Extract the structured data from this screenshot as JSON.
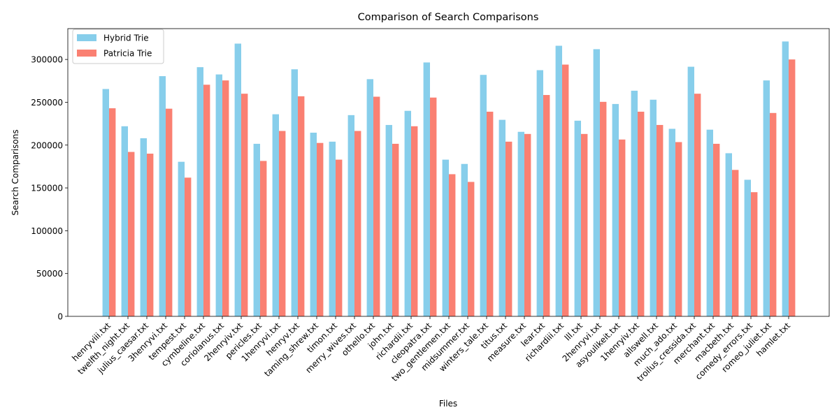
{
  "chart_data": {
    "type": "bar",
    "title": "Comparison of Search Comparisons",
    "xlabel": "Files",
    "ylabel": "Search Comparisons",
    "ylim": [
      0,
      336000
    ],
    "yticks": [
      0,
      50000,
      100000,
      150000,
      200000,
      250000,
      300000
    ],
    "legend_position": "top-left",
    "grid": false,
    "categories": [
      "henryviii.txt",
      "twelfth_night.txt",
      "julius_caesar.txt",
      "3henryvi.txt",
      "tempest.txt",
      "cymbeline.txt",
      "coriolanus.txt",
      "2henryiv.txt",
      "pericles.txt",
      "1henryvi.txt",
      "henryv.txt",
      "taming_shrew.txt",
      "timon.txt",
      "merry_wives.txt",
      "othello.txt",
      "john.txt",
      "richardii.txt",
      "cleopatra.txt",
      "two_gentlemen.txt",
      "midsummer.txt",
      "winters_tale.txt",
      "titus.txt",
      "measure.txt",
      "lear.txt",
      "richardiii.txt",
      "lll.txt",
      "2henryvi.txt",
      "asyoulikeit.txt",
      "1henryiv.txt",
      "allswell.txt",
      "much_ado.txt",
      "troilus_cressida.txt",
      "merchant.txt",
      "macbeth.txt",
      "comedy_errors.txt",
      "romeo_juliet.txt",
      "hamlet.txt"
    ],
    "series": [
      {
        "name": "Hybrid Trie",
        "color": "#87CEEB",
        "values": [
          265500,
          222000,
          208000,
          280500,
          180500,
          291000,
          282500,
          318500,
          201500,
          236000,
          288500,
          214500,
          204000,
          235000,
          277000,
          223500,
          240000,
          296500,
          183000,
          178000,
          282000,
          229500,
          215500,
          287500,
          316000,
          228500,
          312000,
          248000,
          263500,
          253000,
          219000,
          291500,
          218000,
          190500,
          159500,
          275500,
          321000
        ]
      },
      {
        "name": "Patricia Trie",
        "color": "#FA8072",
        "values": [
          243000,
          192000,
          190000,
          242500,
          162000,
          270500,
          275500,
          260000,
          181500,
          216500,
          257000,
          202500,
          183000,
          216500,
          256500,
          201500,
          222000,
          255500,
          166000,
          157000,
          239000,
          204000,
          213000,
          258500,
          294000,
          213000,
          250500,
          206500,
          239000,
          223500,
          203500,
          260000,
          201500,
          171000,
          145000,
          237500,
          300000
        ]
      }
    ]
  }
}
